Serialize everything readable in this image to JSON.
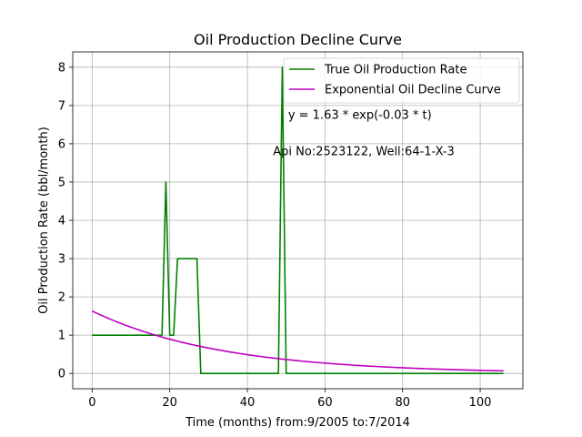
{
  "chart_data": {
    "type": "line",
    "title": "Oil Production Decline Curve",
    "xlabel": "Time (months) from:9/2005 to:7/2014",
    "ylabel": "Oil Production Rate (bbl/month)",
    "xlim": [
      -5,
      111
    ],
    "ylim": [
      -0.4,
      8.4
    ],
    "xticks": [
      0,
      20,
      40,
      60,
      80,
      100
    ],
    "yticks": [
      0,
      1,
      2,
      3,
      4,
      5,
      6,
      7,
      8
    ],
    "grid": true,
    "legend_position": "top-right",
    "annotations": [
      {
        "text": "y = 1.63 * exp(-0.03 * t)",
        "x": 69,
        "y": 6.65
      },
      {
        "text": "Api No:2523122, Well:64-1-X-3",
        "x": 70,
        "y": 5.7
      }
    ],
    "series": [
      {
        "name": "True Oil Production Rate",
        "color": "#008000",
        "kind": "data",
        "points": [
          [
            0,
            1
          ],
          [
            18,
            1
          ],
          [
            19,
            5
          ],
          [
            20,
            1
          ],
          [
            21,
            1
          ],
          [
            22,
            3
          ],
          [
            27,
            3
          ],
          [
            28,
            0
          ],
          [
            48,
            0
          ],
          [
            49,
            8
          ],
          [
            50,
            0
          ],
          [
            106,
            0
          ]
        ]
      },
      {
        "name": "Exponential Oil Decline Curve",
        "color": "#bf00bf",
        "kind": "exponential",
        "a": 1.63,
        "b": -0.03,
        "x_range": [
          0,
          106
        ]
      }
    ]
  }
}
